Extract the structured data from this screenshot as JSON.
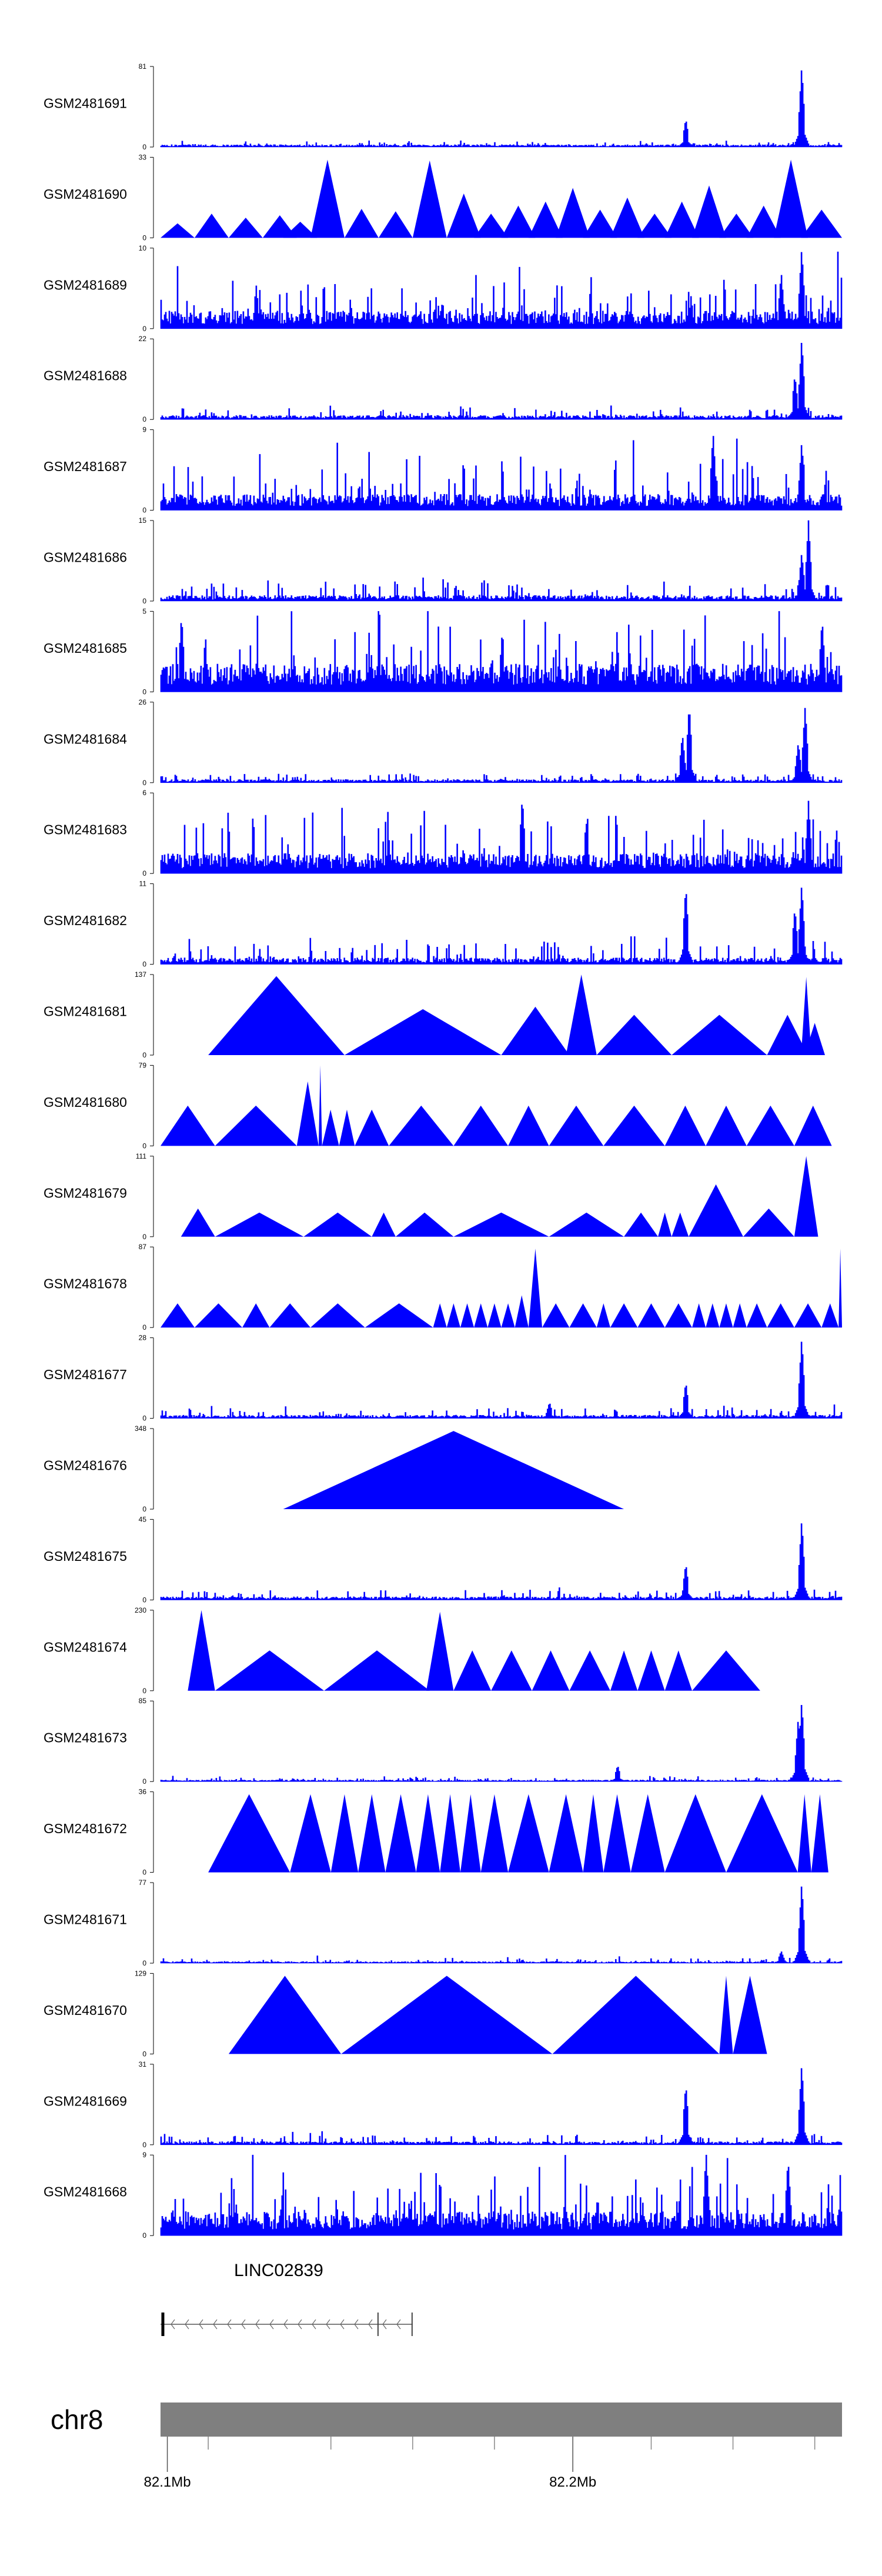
{
  "chart_data": {
    "type": "area",
    "color": "#0000ff",
    "tracks": [
      {
        "name": "GSM2481691",
        "ymax": "81",
        "kind": "coverage",
        "base": 0.03,
        "noise": 0.04,
        "peaks": [
          [
            0.77,
            0.35
          ],
          [
            0.94,
            1.0
          ]
        ]
      },
      {
        "name": "GSM2481690",
        "ymax": "33",
        "kind": "tri",
        "tris": [
          [
            0.0,
            0.05,
            0.18
          ],
          [
            0.05,
            0.1,
            0.3
          ],
          [
            0.1,
            0.15,
            0.25
          ],
          [
            0.15,
            0.2,
            0.28
          ],
          [
            0.18,
            0.23,
            0.2
          ],
          [
            0.22,
            0.27,
            0.97
          ],
          [
            0.27,
            0.32,
            0.36
          ],
          [
            0.32,
            0.37,
            0.33
          ],
          [
            0.37,
            0.42,
            0.96
          ],
          [
            0.42,
            0.47,
            0.55
          ],
          [
            0.46,
            0.51,
            0.3
          ],
          [
            0.5,
            0.55,
            0.4
          ],
          [
            0.54,
            0.59,
            0.45
          ],
          [
            0.58,
            0.63,
            0.62
          ],
          [
            0.62,
            0.67,
            0.35
          ],
          [
            0.66,
            0.71,
            0.5
          ],
          [
            0.7,
            0.75,
            0.3
          ],
          [
            0.74,
            0.79,
            0.45
          ],
          [
            0.78,
            0.83,
            0.65
          ],
          [
            0.82,
            0.87,
            0.3
          ],
          [
            0.86,
            0.91,
            0.4
          ],
          [
            0.9,
            0.95,
            0.97
          ],
          [
            0.94,
            1.0,
            0.35
          ]
        ]
      },
      {
        "name": "GSM2481689",
        "ymax": "10",
        "kind": "coverage",
        "base": 0.22,
        "noise": 0.45,
        "peaks": [
          [
            0.94,
            1.0
          ],
          [
            0.91,
            0.7
          ]
        ]
      },
      {
        "name": "GSM2481688",
        "ymax": "22",
        "kind": "coverage",
        "base": 0.05,
        "noise": 0.1,
        "peaks": [
          [
            0.94,
            1.0
          ],
          [
            0.93,
            0.55
          ]
        ]
      },
      {
        "name": "GSM2481687",
        "ymax": "9",
        "kind": "coverage",
        "base": 0.2,
        "noise": 0.5,
        "peaks": [
          [
            0.81,
            0.97
          ],
          [
            0.94,
            0.85
          ]
        ]
      },
      {
        "name": "GSM2481686",
        "ymax": "15",
        "kind": "coverage",
        "base": 0.07,
        "noise": 0.18,
        "peaks": [
          [
            0.95,
            1.0
          ],
          [
            0.94,
            0.6
          ]
        ]
      },
      {
        "name": "GSM2481685",
        "ymax": "5",
        "kind": "coverage",
        "base": 0.35,
        "noise": 0.65,
        "peaks": [
          [
            0.03,
            0.95
          ],
          [
            0.97,
            0.9
          ]
        ]
      },
      {
        "name": "GSM2481684",
        "ymax": "26",
        "kind": "coverage",
        "base": 0.04,
        "noise": 0.08,
        "peaks": [
          [
            0.775,
            0.97
          ],
          [
            0.765,
            0.6
          ],
          [
            0.945,
            0.95
          ],
          [
            0.935,
            0.5
          ]
        ]
      },
      {
        "name": "GSM2481683",
        "ymax": "6",
        "kind": "coverage",
        "base": 0.25,
        "noise": 0.55,
        "peaks": [
          [
            0.53,
            0.95
          ],
          [
            0.95,
            0.9
          ]
        ]
      },
      {
        "name": "GSM2481682",
        "ymax": "11",
        "kind": "coverage",
        "base": 0.08,
        "noise": 0.22,
        "peaks": [
          [
            0.77,
            0.97
          ],
          [
            0.94,
            1.0
          ],
          [
            0.93,
            0.7
          ]
        ]
      },
      {
        "name": "GSM2481681",
        "ymax": "137",
        "kind": "tri",
        "tris": [
          [
            0.07,
            0.27,
            0.98
          ],
          [
            0.27,
            0.5,
            0.57
          ],
          [
            0.5,
            0.6,
            0.6
          ],
          [
            0.595,
            0.64,
            1.0
          ],
          [
            0.64,
            0.75,
            0.5
          ],
          [
            0.75,
            0.89,
            0.5
          ],
          [
            0.89,
            0.95,
            0.5
          ],
          [
            0.94,
            0.955,
            0.97
          ],
          [
            0.945,
            0.975,
            0.4
          ]
        ]
      },
      {
        "name": "GSM2481680",
        "ymax": "79",
        "kind": "tri",
        "tris": [
          [
            0.0,
            0.08,
            0.5
          ],
          [
            0.08,
            0.2,
            0.5
          ],
          [
            0.2,
            0.232,
            0.8
          ],
          [
            0.232,
            0.237,
            1.0
          ],
          [
            0.237,
            0.262,
            0.45
          ],
          [
            0.262,
            0.285,
            0.45
          ],
          [
            0.285,
            0.335,
            0.45
          ],
          [
            0.335,
            0.43,
            0.5
          ],
          [
            0.43,
            0.51,
            0.5
          ],
          [
            0.51,
            0.57,
            0.5
          ],
          [
            0.57,
            0.65,
            0.5
          ],
          [
            0.65,
            0.74,
            0.5
          ],
          [
            0.74,
            0.8,
            0.5
          ],
          [
            0.8,
            0.86,
            0.5
          ],
          [
            0.86,
            0.93,
            0.5
          ],
          [
            0.93,
            0.985,
            0.5
          ]
        ]
      },
      {
        "name": "GSM2481679",
        "ymax": "111",
        "kind": "tri",
        "tris": [
          [
            0.03,
            0.08,
            0.35
          ],
          [
            0.08,
            0.21,
            0.3
          ],
          [
            0.21,
            0.31,
            0.3
          ],
          [
            0.31,
            0.345,
            0.3
          ],
          [
            0.345,
            0.43,
            0.3
          ],
          [
            0.43,
            0.57,
            0.3
          ],
          [
            0.57,
            0.68,
            0.3
          ],
          [
            0.68,
            0.73,
            0.3
          ],
          [
            0.73,
            0.75,
            0.3
          ],
          [
            0.75,
            0.775,
            0.3
          ],
          [
            0.775,
            0.855,
            0.65
          ],
          [
            0.855,
            0.93,
            0.35
          ],
          [
            0.93,
            0.965,
            1.0
          ]
        ]
      },
      {
        "name": "GSM2481678",
        "ymax": "87",
        "kind": "tri",
        "tris": [
          [
            0.0,
            0.05,
            0.3
          ],
          [
            0.05,
            0.12,
            0.3
          ],
          [
            0.12,
            0.16,
            0.3
          ],
          [
            0.16,
            0.22,
            0.3
          ],
          [
            0.22,
            0.3,
            0.3
          ],
          [
            0.3,
            0.4,
            0.3
          ],
          [
            0.4,
            0.42,
            0.3
          ],
          [
            0.42,
            0.44,
            0.3
          ],
          [
            0.44,
            0.46,
            0.3
          ],
          [
            0.46,
            0.48,
            0.3
          ],
          [
            0.48,
            0.5,
            0.3
          ],
          [
            0.5,
            0.52,
            0.3
          ],
          [
            0.52,
            0.54,
            0.4
          ],
          [
            0.54,
            0.56,
            0.98
          ],
          [
            0.56,
            0.6,
            0.3
          ],
          [
            0.6,
            0.64,
            0.3
          ],
          [
            0.64,
            0.66,
            0.3
          ],
          [
            0.66,
            0.7,
            0.3
          ],
          [
            0.7,
            0.74,
            0.3
          ],
          [
            0.74,
            0.78,
            0.3
          ],
          [
            0.78,
            0.8,
            0.3
          ],
          [
            0.8,
            0.82,
            0.3
          ],
          [
            0.82,
            0.84,
            0.3
          ],
          [
            0.84,
            0.86,
            0.3
          ],
          [
            0.86,
            0.89,
            0.3
          ],
          [
            0.89,
            0.93,
            0.3
          ],
          [
            0.93,
            0.97,
            0.3
          ],
          [
            0.97,
            0.995,
            0.3
          ],
          [
            0.995,
            1.0,
            0.98
          ]
        ]
      },
      {
        "name": "GSM2481677",
        "ymax": "28",
        "kind": "coverage",
        "base": 0.04,
        "noise": 0.1,
        "peaks": [
          [
            0.77,
            0.45
          ],
          [
            0.94,
            1.0
          ],
          [
            0.57,
            0.2
          ]
        ]
      },
      {
        "name": "GSM2481676",
        "ymax": "348",
        "kind": "tri",
        "tris": [
          [
            0.18,
            0.68,
            0.97
          ]
        ]
      },
      {
        "name": "GSM2481675",
        "ymax": "45",
        "kind": "coverage",
        "base": 0.04,
        "noise": 0.09,
        "peaks": [
          [
            0.77,
            0.45
          ],
          [
            0.94,
            1.0
          ]
        ]
      },
      {
        "name": "GSM2481674",
        "ymax": "230",
        "kind": "tri",
        "tris": [
          [
            0.04,
            0.08,
            1.0
          ],
          [
            0.08,
            0.24,
            0.5
          ],
          [
            0.24,
            0.395,
            0.5
          ],
          [
            0.39,
            0.43,
            0.98
          ],
          [
            0.43,
            0.485,
            0.5
          ],
          [
            0.485,
            0.545,
            0.5
          ],
          [
            0.545,
            0.6,
            0.5
          ],
          [
            0.6,
            0.66,
            0.5
          ],
          [
            0.66,
            0.7,
            0.5
          ],
          [
            0.7,
            0.74,
            0.5
          ],
          [
            0.74,
            0.78,
            0.5
          ],
          [
            0.78,
            0.88,
            0.5
          ]
        ]
      },
      {
        "name": "GSM2481673",
        "ymax": "85",
        "kind": "coverage",
        "base": 0.02,
        "noise": 0.04,
        "peaks": [
          [
            0.935,
            0.8
          ],
          [
            0.94,
            1.0
          ],
          [
            0.67,
            0.2
          ]
        ]
      },
      {
        "name": "GSM2481672",
        "ymax": "36",
        "kind": "tri",
        "tris": [
          [
            0.07,
            0.19,
            0.97
          ],
          [
            0.19,
            0.25,
            0.97
          ],
          [
            0.25,
            0.29,
            0.97
          ],
          [
            0.29,
            0.33,
            0.97
          ],
          [
            0.33,
            0.375,
            0.97
          ],
          [
            0.375,
            0.41,
            0.97
          ],
          [
            0.41,
            0.44,
            0.97
          ],
          [
            0.44,
            0.47,
            0.97
          ],
          [
            0.47,
            0.51,
            0.97
          ],
          [
            0.51,
            0.57,
            0.97
          ],
          [
            0.57,
            0.62,
            0.97
          ],
          [
            0.62,
            0.65,
            0.97
          ],
          [
            0.65,
            0.69,
            0.97
          ],
          [
            0.69,
            0.74,
            0.97
          ],
          [
            0.74,
            0.83,
            0.97
          ],
          [
            0.83,
            0.935,
            0.97
          ],
          [
            0.935,
            0.955,
            0.97
          ],
          [
            0.955,
            0.98,
            0.97
          ]
        ]
      },
      {
        "name": "GSM2481671",
        "ymax": "77",
        "kind": "coverage",
        "base": 0.02,
        "noise": 0.05,
        "peaks": [
          [
            0.94,
            1.0
          ],
          [
            0.91,
            0.15
          ]
        ]
      },
      {
        "name": "GSM2481670",
        "ymax": "129",
        "kind": "tri",
        "tris": [
          [
            0.1,
            0.265,
            0.97
          ],
          [
            0.265,
            0.575,
            0.97
          ],
          [
            0.575,
            0.82,
            0.97
          ],
          [
            0.82,
            0.84,
            0.97
          ],
          [
            0.84,
            0.89,
            0.97
          ]
        ]
      },
      {
        "name": "GSM2481669",
        "ymax": "31",
        "kind": "coverage",
        "base": 0.04,
        "noise": 0.1,
        "peaks": [
          [
            0.77,
            0.75
          ],
          [
            0.94,
            1.0
          ]
        ]
      },
      {
        "name": "GSM2481668",
        "ymax": "9",
        "kind": "coverage",
        "base": 0.3,
        "noise": 0.6,
        "peaks": [
          [
            0.8,
            1.0
          ],
          [
            0.92,
            0.95
          ]
        ]
      }
    ],
    "y_axis_min_label": "0",
    "gene": {
      "name": "LINC02839",
      "start": 0.0,
      "end": 0.37,
      "exons": [
        0.003,
        0.32,
        0.37
      ],
      "strand": "-"
    },
    "chromosome": {
      "name": "chr8",
      "fill": "#7f7f7f"
    },
    "axis": {
      "ticks": [
        {
          "pos": 0.01,
          "label": "82.1Mb"
        },
        {
          "pos": 0.605,
          "label": "82.2Mb"
        }
      ],
      "minor": [
        0.07,
        0.25,
        0.37,
        0.49,
        0.72,
        0.84,
        0.96
      ]
    }
  }
}
